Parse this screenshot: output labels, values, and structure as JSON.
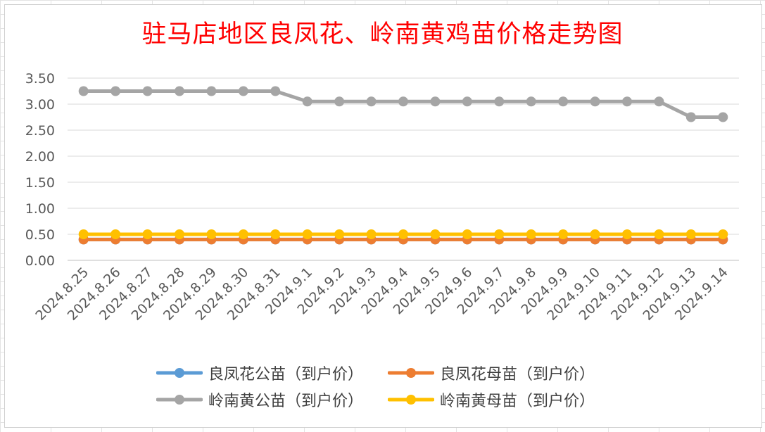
{
  "chart_data": {
    "type": "line",
    "title": "驻马店地区良凤花、岭南黄鸡苗价格走势图",
    "xlabel": "",
    "ylabel": "",
    "ylim": [
      0,
      3.5
    ],
    "yticks": [
      "0.00",
      "0.50",
      "1.00",
      "1.50",
      "2.00",
      "2.50",
      "3.00",
      "3.50"
    ],
    "grid": true,
    "legend_position": "bottom",
    "categories": [
      "2024.8.25",
      "2024.8.26",
      "2024.8.27",
      "2024.8.28",
      "2024.8.29",
      "2024.8.30",
      "2024.8.31",
      "2024.9.1",
      "2024.9.2",
      "2024.9.3",
      "2024.9.4",
      "2024.9.5",
      "2024.9.6",
      "2024.9.7",
      "2024.9.8",
      "2024.9.9",
      "2024.9.10",
      "2024.9.11",
      "2024.9.12",
      "2024.9.13",
      "2024.9.14"
    ],
    "series": [
      {
        "name": "良凤花公苗（到户价）",
        "color": "#5b9bd5",
        "values": [
          0.4,
          0.4,
          0.4,
          0.4,
          0.4,
          0.4,
          0.4,
          0.4,
          0.4,
          0.4,
          0.4,
          0.4,
          0.4,
          0.4,
          0.4,
          0.4,
          0.4,
          0.4,
          0.4,
          0.4,
          0.4
        ]
      },
      {
        "name": "良凤花母苗（到户价）",
        "color": "#ed7d31",
        "values": [
          0.4,
          0.4,
          0.4,
          0.4,
          0.4,
          0.4,
          0.4,
          0.4,
          0.4,
          0.4,
          0.4,
          0.4,
          0.4,
          0.4,
          0.4,
          0.4,
          0.4,
          0.4,
          0.4,
          0.4,
          0.4
        ]
      },
      {
        "name": "岭南黄公苗（到户价）",
        "color": "#a5a5a5",
        "values": [
          3.25,
          3.25,
          3.25,
          3.25,
          3.25,
          3.25,
          3.25,
          3.05,
          3.05,
          3.05,
          3.05,
          3.05,
          3.05,
          3.05,
          3.05,
          3.05,
          3.05,
          3.05,
          3.05,
          2.75,
          2.75
        ]
      },
      {
        "name": "岭南黄母苗（到户价）",
        "color": "#ffc000",
        "values": [
          0.5,
          0.5,
          0.5,
          0.5,
          0.5,
          0.5,
          0.5,
          0.5,
          0.5,
          0.5,
          0.5,
          0.5,
          0.5,
          0.5,
          0.5,
          0.5,
          0.5,
          0.5,
          0.5,
          0.5,
          0.5
        ]
      }
    ]
  }
}
